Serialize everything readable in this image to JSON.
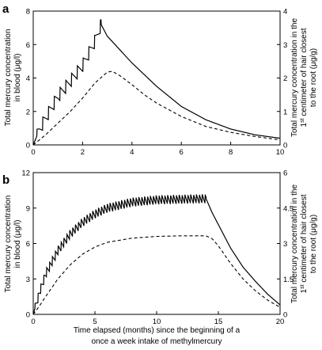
{
  "chart_data": [
    {
      "type": "line",
      "panel_label": "a",
      "xlim": [
        0,
        10
      ],
      "xticks": [
        "0",
        "2",
        "4",
        "6",
        "8",
        "10"
      ],
      "ylim": [
        0,
        8
      ],
      "yticks": [
        "0",
        "2",
        "4",
        "6",
        "8"
      ],
      "ylabel": "Total mercury concentration in blood (μg/l)",
      "y2lim": [
        0,
        4
      ],
      "y2ticks": [
        "0",
        "1",
        "2",
        "3",
        "4"
      ],
      "y2label": "Total mercury concentration in the 1st centimeter of hair closest to the root (μg/g)",
      "series": [
        {
          "style": "solid",
          "axis": "left",
          "x": [
            0,
            0.25,
            0.5,
            1,
            1.5,
            2,
            2.5,
            2.75,
            3,
            3.5,
            4,
            4.5,
            5,
            6,
            7,
            8,
            9,
            10
          ],
          "y": [
            0,
            0.9,
            1.6,
            2.9,
            3.8,
            4.75,
            6.2,
            7.2,
            6.5,
            5.7,
            4.9,
            4.2,
            3.5,
            2.3,
            1.5,
            0.95,
            0.6,
            0.4
          ]
        },
        {
          "style": "dashed",
          "axis": "left",
          "x": [
            0,
            0.5,
            1,
            1.5,
            2,
            2.5,
            3,
            3.2,
            3.5,
            4,
            4.5,
            5,
            6,
            7,
            8,
            9,
            10
          ],
          "y": [
            0,
            0.6,
            1.3,
            2.0,
            2.8,
            3.7,
            4.35,
            4.4,
            4.15,
            3.6,
            3.0,
            2.5,
            1.7,
            1.1,
            0.75,
            0.5,
            0.3
          ]
        }
      ]
    },
    {
      "type": "line",
      "panel_label": "b",
      "xlim": [
        0,
        20
      ],
      "xticks": [
        "0",
        "5",
        "10",
        "15",
        "20"
      ],
      "xlabel": "Time elapsed (months) since the beginning of a once a week intake of methylmercury",
      "ylim": [
        0,
        12
      ],
      "yticks": [
        "0",
        "3",
        "6",
        "9",
        "12"
      ],
      "ylabel": "Total mercury concentration in blood (μg/l)",
      "y2lim": [
        0,
        6
      ],
      "y2ticks": [
        "0",
        "1.5",
        "3",
        "4.5",
        "6"
      ],
      "y2label": "Total mercury concentration in the 1st centimeter of hair closest to the root (μg/g)",
      "series": [
        {
          "style": "solid",
          "axis": "left",
          "x": [
            0,
            0.5,
            1,
            2,
            3,
            4,
            5,
            6,
            8,
            10,
            12,
            14,
            14.5,
            15,
            16,
            17,
            18,
            19,
            20
          ],
          "y": [
            0,
            1.8,
            3.4,
            5.4,
            6.8,
            7.8,
            8.5,
            9.0,
            9.5,
            9.7,
            9.75,
            9.8,
            8.6,
            7.6,
            5.6,
            4.0,
            2.8,
            1.7,
            0.8
          ]
        },
        {
          "style": "dashed",
          "axis": "left",
          "x": [
            0,
            0.5,
            1,
            2,
            3,
            4,
            5,
            6,
            8,
            10,
            12,
            14,
            14.5,
            15,
            16,
            17,
            18,
            19,
            20
          ],
          "y": [
            0,
            0.7,
            1.5,
            3.0,
            4.2,
            5.1,
            5.7,
            6.1,
            6.45,
            6.6,
            6.65,
            6.65,
            6.4,
            5.8,
            4.3,
            3.0,
            2.0,
            1.2,
            0.6
          ]
        }
      ]
    }
  ],
  "text": {
    "a_label": "a",
    "b_label": "b",
    "a_ylabel_l1": "Total mercury concentration",
    "a_ylabel_l2": "in blood (μg/l)",
    "a_y2label_l1": "Total mercury concentration in the",
    "a_y2label_l2a": "1",
    "a_y2label_l2sup": "st",
    "a_y2label_l2b": " centimeter of hair closest",
    "a_y2label_l3": "to the root (μg/g)",
    "b_ylabel_l1": "Total mercury concentration",
    "b_ylabel_l2": "in blood (μg/l)",
    "b_y2label_l1": "Total mercury concentration in the",
    "b_y2label_l2a": "1",
    "b_y2label_l2sup": "st",
    "b_y2label_l2b": " centimeter of hair closest",
    "b_y2label_l3": "to the root (μg/g)",
    "xlabel_l1": "Time elapsed (months) since the beginning of a",
    "xlabel_l2": "once a week intake of methylmercury"
  }
}
